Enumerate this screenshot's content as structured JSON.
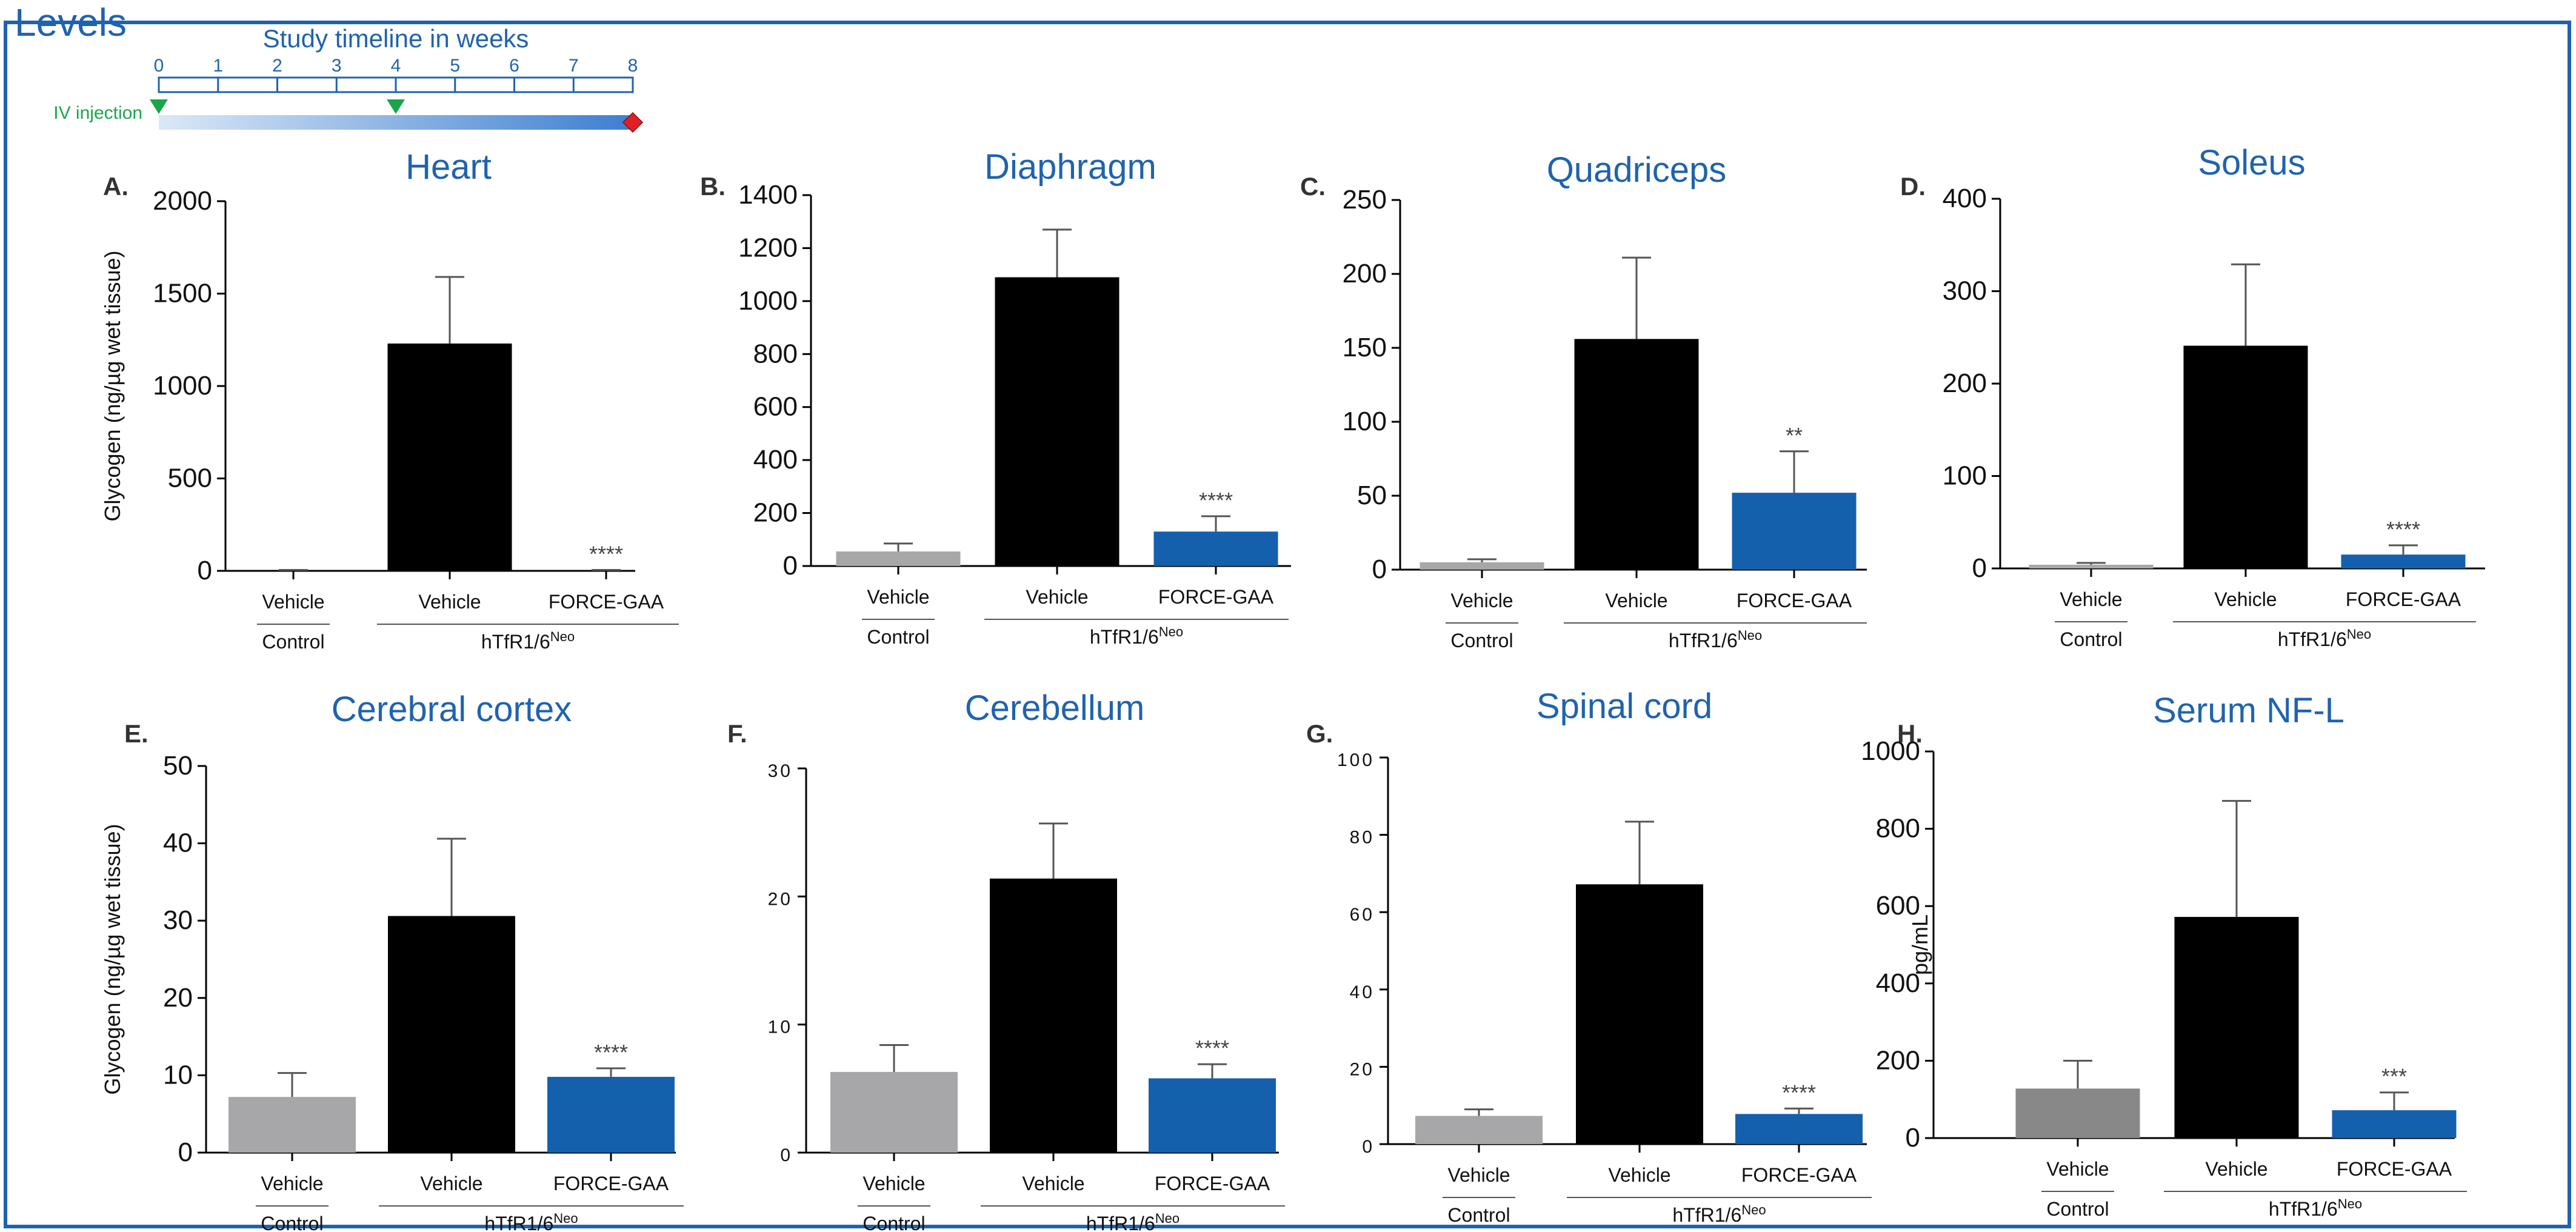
{
  "page": {
    "top_title": "Levels"
  },
  "timeline": {
    "title": "Study timeline in weeks",
    "weeks": [
      "0",
      "1",
      "2",
      "3",
      "4",
      "5",
      "6",
      "7",
      "8"
    ],
    "injection_label": "IV injection",
    "injection_weeks": [
      0,
      4
    ],
    "end_week": 8,
    "color": "#1f63ad",
    "injection_color": "#1aa54a",
    "end_color": "#e21f26"
  },
  "groups": {
    "bar_labels": [
      "Vehicle",
      "Vehicle",
      "FORCE-GAA"
    ],
    "control_label": "Control",
    "model_label_main": "hTfR1/6",
    "model_label_sup": "Neo"
  },
  "colors": {
    "control": "#a7a7aa",
    "vehicle": "#000000",
    "force": "#1560ad",
    "title": "#1f63ad",
    "nfl_control": "#888888"
  },
  "chart_data": [
    {
      "panel": "A.",
      "type": "bar",
      "title": "Heart",
      "ylabel": "Glycogen (ng/µg wet tissue)",
      "ylim": [
        0,
        2000
      ],
      "ticks": [
        0,
        500,
        1000,
        1500,
        2000
      ],
      "tick_labels": [
        "0",
        "500",
        "1000",
        "1500",
        "2000"
      ],
      "categories": [
        "Vehicle",
        "Vehicle",
        "FORCE-GAA"
      ],
      "values": [
        0,
        1230,
        0
      ],
      "errors": [
        5,
        360,
        5
      ],
      "significance": [
        "",
        "",
        "****"
      ]
    },
    {
      "panel": "B.",
      "type": "bar",
      "title": "Diaphragm",
      "ylabel": "",
      "ylim": [
        0,
        1400
      ],
      "ticks": [
        0,
        200,
        400,
        600,
        800,
        1000,
        1200,
        1400
      ],
      "tick_labels": [
        "0",
        "200",
        "400",
        "600",
        "800",
        "1000",
        "1200",
        "1400"
      ],
      "categories": [
        "Vehicle",
        "Vehicle",
        "FORCE-GAA"
      ],
      "values": [
        55,
        1090,
        130
      ],
      "errors": [
        30,
        180,
        58
      ],
      "significance": [
        "",
        "",
        "****"
      ]
    },
    {
      "panel": "C.",
      "type": "bar",
      "title": "Quadriceps",
      "ylabel": "",
      "ylim": [
        0,
        250
      ],
      "ticks": [
        0,
        50,
        100,
        150,
        200,
        250
      ],
      "tick_labels": [
        "0",
        "50",
        "100",
        "150",
        "200",
        "250"
      ],
      "categories": [
        "Vehicle",
        "Vehicle",
        "FORCE-GAA"
      ],
      "values": [
        5,
        156,
        52
      ],
      "errors": [
        2,
        55,
        28
      ],
      "significance": [
        "",
        "",
        "**"
      ]
    },
    {
      "panel": "D.",
      "type": "bar",
      "title": "Soleus",
      "ylabel": "",
      "ylim": [
        0,
        400
      ],
      "ticks": [
        0,
        100,
        200,
        300,
        400
      ],
      "tick_labels": [
        "0",
        "100",
        "200",
        "300",
        "400"
      ],
      "categories": [
        "Vehicle",
        "Vehicle",
        "FORCE-GAA"
      ],
      "values": [
        4,
        241,
        15
      ],
      "errors": [
        2,
        88,
        10
      ],
      "significance": [
        "",
        "",
        "****"
      ]
    },
    {
      "panel": "E.",
      "type": "bar",
      "title": "Cerebral cortex",
      "ylabel": "Glycogen (ng/µg wet tissue)",
      "ylim": [
        0,
        50
      ],
      "ticks": [
        0,
        10,
        20,
        30,
        40,
        50
      ],
      "tick_labels": [
        "0",
        "10",
        "20",
        "30",
        "40",
        "50"
      ],
      "categories": [
        "Vehicle",
        "Vehicle",
        "FORCE-GAA"
      ],
      "values": [
        7.2,
        30.6,
        9.8
      ],
      "errors": [
        3.1,
        10.0,
        1.1
      ],
      "significance": [
        "",
        "",
        "****"
      ]
    },
    {
      "panel": "F.",
      "type": "bar",
      "title": "Cerebellum",
      "ylabel": "",
      "ylim": [
        0,
        30
      ],
      "ticks": [
        0,
        10,
        20,
        30
      ],
      "tick_labels": [
        "0",
        "10",
        "20",
        "30"
      ],
      "categories": [
        "Vehicle",
        "Vehicle",
        "FORCE-GAA"
      ],
      "values": [
        6.3,
        21.4,
        5.8
      ],
      "errors": [
        2.1,
        4.3,
        1.1
      ],
      "significance": [
        "",
        "",
        "****"
      ]
    },
    {
      "panel": "G.",
      "type": "bar",
      "title": "Spinal cord",
      "ylabel": "",
      "ylim": [
        0,
        100
      ],
      "ticks": [
        0,
        20,
        40,
        60,
        80,
        100
      ],
      "tick_labels": [
        "0",
        "20",
        "40",
        "60",
        "80",
        "100"
      ],
      "categories": [
        "Vehicle",
        "Vehicle",
        "FORCE-GAA"
      ],
      "values": [
        7.3,
        67.2,
        7.8
      ],
      "errors": [
        1.7,
        16.2,
        1.4
      ],
      "significance": [
        "",
        "",
        "****"
      ]
    },
    {
      "panel": "H.",
      "type": "bar",
      "title": "Serum NF-L",
      "ylabel": "pg/mL",
      "ylim": [
        0,
        1000
      ],
      "ticks": [
        0,
        200,
        400,
        600,
        800,
        1000
      ],
      "tick_labels": [
        "0",
        "200",
        "400",
        "600",
        "800",
        "1000"
      ],
      "categories": [
        "Vehicle",
        "Vehicle",
        "FORCE-GAA"
      ],
      "values": [
        128,
        572,
        72
      ],
      "errors": [
        72,
        300,
        46
      ],
      "significance": [
        "",
        "",
        "***"
      ]
    }
  ]
}
